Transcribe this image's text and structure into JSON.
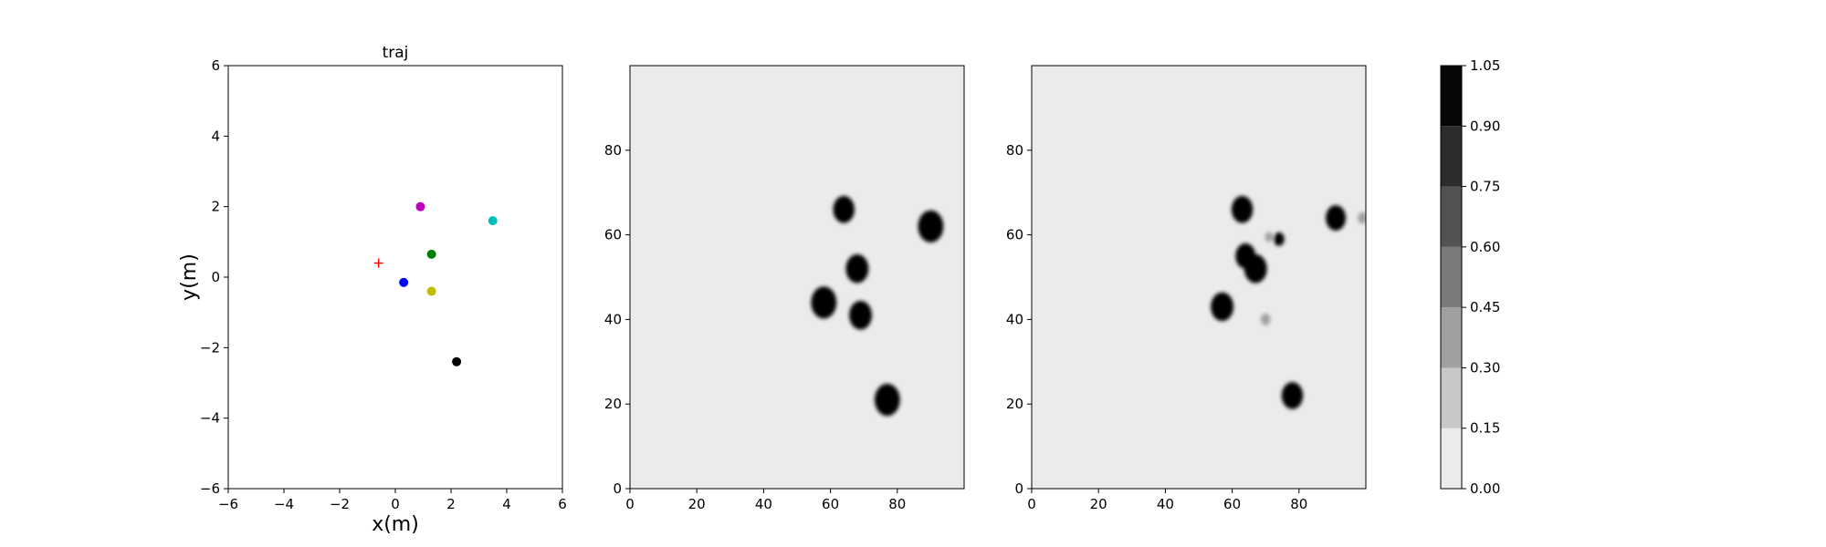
{
  "chart_data": [
    {
      "type": "scatter",
      "title": "traj",
      "xlabel": "x(m)",
      "ylabel": "y(m)",
      "xlim": [
        -6,
        6
      ],
      "ylim": [
        -6,
        6
      ],
      "xticks": [
        -6,
        -4,
        -2,
        0,
        2,
        4,
        6
      ],
      "yticks": [
        -6,
        -4,
        -2,
        0,
        2,
        4,
        6
      ],
      "grid": false,
      "points": [
        {
          "x": 0.9,
          "y": 2.0,
          "color": "#bf00bf",
          "marker": "circle"
        },
        {
          "x": 3.5,
          "y": 1.6,
          "color": "#00bfbf",
          "marker": "circle"
        },
        {
          "x": 1.3,
          "y": 0.65,
          "color": "#008000",
          "marker": "circle"
        },
        {
          "x": 0.3,
          "y": -0.15,
          "color": "#0000ff",
          "marker": "circle"
        },
        {
          "x": 1.3,
          "y": -0.4,
          "color": "#bfbf00",
          "marker": "circle"
        },
        {
          "x": 2.2,
          "y": -2.4,
          "color": "#000000",
          "marker": "circle"
        },
        {
          "x": -0.6,
          "y": 0.4,
          "color": "#ff0000",
          "marker": "plus"
        }
      ]
    },
    {
      "type": "heatmap",
      "title": "",
      "xlim": [
        0,
        100
      ],
      "ylim": [
        0,
        100
      ],
      "xticks": [
        0,
        20,
        40,
        60,
        80
      ],
      "yticks": [
        0,
        20,
        40,
        60,
        80
      ],
      "background_value": 0.05,
      "blobs": [
        {
          "x": 64,
          "y": 66,
          "r": 3.2,
          "value": 1.0
        },
        {
          "x": 90,
          "y": 62,
          "r": 3.8,
          "value": 1.0
        },
        {
          "x": 68,
          "y": 52,
          "r": 3.4,
          "value": 1.0
        },
        {
          "x": 58,
          "y": 44,
          "r": 3.8,
          "value": 1.0
        },
        {
          "x": 69,
          "y": 41,
          "r": 3.4,
          "value": 1.0
        },
        {
          "x": 77,
          "y": 21,
          "r": 3.8,
          "value": 1.0
        }
      ]
    },
    {
      "type": "heatmap",
      "title": "",
      "xlim": [
        0,
        100
      ],
      "ylim": [
        0,
        100
      ],
      "xticks": [
        0,
        20,
        40,
        60,
        80
      ],
      "yticks": [
        0,
        20,
        40,
        60,
        80
      ],
      "background_value": 0.05,
      "blobs": [
        {
          "x": 63,
          "y": 66,
          "r": 3.2,
          "value": 1.0
        },
        {
          "x": 64,
          "y": 55,
          "r": 3.0,
          "value": 1.0
        },
        {
          "x": 67,
          "y": 52,
          "r": 3.4,
          "value": 1.0
        },
        {
          "x": 74,
          "y": 59,
          "r": 1.6,
          "value": 0.95
        },
        {
          "x": 91,
          "y": 64,
          "r": 3.0,
          "value": 0.95
        },
        {
          "x": 57,
          "y": 43,
          "r": 3.4,
          "value": 1.0
        },
        {
          "x": 78,
          "y": 22,
          "r": 3.2,
          "value": 1.0
        },
        {
          "x": 71,
          "y": 59.5,
          "r": 1.2,
          "value": 0.3
        },
        {
          "x": 70,
          "y": 40,
          "r": 1.4,
          "value": 0.3
        },
        {
          "x": 99,
          "y": 64,
          "r": 1.4,
          "value": 0.3
        }
      ]
    }
  ],
  "colorbar": {
    "levels": [
      0.0,
      0.15,
      0.3,
      0.45,
      0.6,
      0.75,
      0.9,
      1.05
    ],
    "tick_labels": [
      "0.00",
      "0.15",
      "0.30",
      "0.45",
      "0.60",
      "0.75",
      "0.90",
      "1.05"
    ],
    "colors": [
      "#ebebeb",
      "#c8c8c8",
      "#a0a0a0",
      "#7a7a7a",
      "#525252",
      "#2c2c2c",
      "#060606"
    ]
  }
}
